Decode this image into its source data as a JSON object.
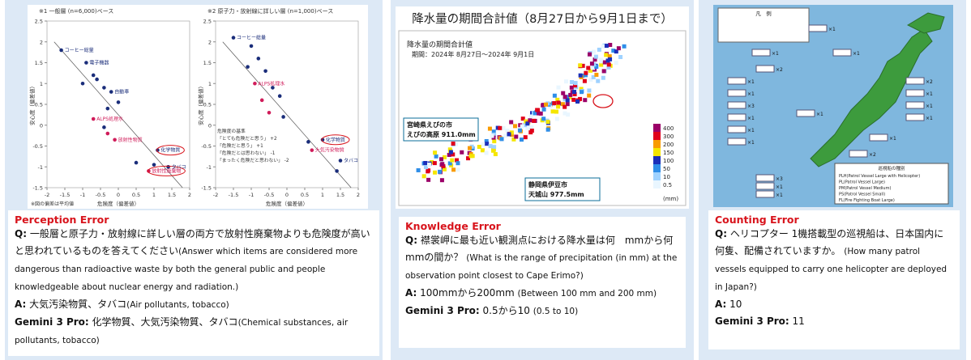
{
  "panels": [
    {
      "image": {
        "charts": [
          {
            "title": "※1 一般層 (n=6,000)ベース",
            "xlabel": "危険度（偏差値）",
            "ylabel": "安心度（偏差値）",
            "xlim": [
              -2,
              2
            ],
            "ylim": [
              -1.5,
              2.5
            ],
            "xticks": [
              -2,
              -1.5,
              -1,
              -0.5,
              0,
              0.5,
              1,
              1.5,
              2
            ],
            "yticks": [
              -1.5,
              -1,
              -0.5,
              0,
              0.5,
              1,
              1.5,
              2,
              2.5
            ],
            "points": [
              {
                "x": -1.6,
                "y": 1.8,
                "color": "#1a2d7a"
              },
              {
                "x": -0.9,
                "y": 1.5,
                "color": "#1a2d7a"
              },
              {
                "x": -0.7,
                "y": 1.2,
                "color": "#1a2d7a"
              },
              {
                "x": -1.0,
                "y": 1.0,
                "color": "#1a2d7a"
              },
              {
                "x": -0.6,
                "y": 1.1,
                "color": "#1a2d7a"
              },
              {
                "x": -0.4,
                "y": 0.9,
                "color": "#1a2d7a"
              },
              {
                "x": -0.2,
                "y": 0.8,
                "color": "#1a2d7a"
              },
              {
                "x": 0.0,
                "y": 0.55,
                "color": "#1a2d7a"
              },
              {
                "x": -0.3,
                "y": 0.4,
                "color": "#1a2d7a"
              },
              {
                "x": -0.7,
                "y": 0.15,
                "color": "#d01c5a"
              },
              {
                "x": -0.4,
                "y": -0.05,
                "color": "#1a2d7a"
              },
              {
                "x": -0.3,
                "y": -0.2,
                "color": "#d01c5a"
              },
              {
                "x": -0.1,
                "y": -0.35,
                "color": "#d01c5a"
              },
              {
                "x": 0.5,
                "y": -0.9,
                "color": "#1a2d7a"
              },
              {
                "x": 1.1,
                "y": -0.6,
                "color": "#1a2d7a"
              },
              {
                "x": 1.0,
                "y": -0.95,
                "color": "#1a2d7a"
              },
              {
                "x": 1.4,
                "y": -1.0,
                "color": "#1a2d7a"
              },
              {
                "x": 0.85,
                "y": -1.1,
                "color": "#d01c5a"
              }
            ],
            "labels": [
              {
                "point": 0,
                "text": "コーヒー総量"
              },
              {
                "point": 1,
                "text": "電子機器"
              },
              {
                "point": 6,
                "text": "自動車"
              },
              {
                "point": 9,
                "text": "ALPS処理水"
              },
              {
                "point": 12,
                "text": "放射性物質"
              },
              {
                "point": 14,
                "text": "化学物質"
              },
              {
                "point": 17,
                "text": "放射性廃棄物"
              },
              {
                "point": 16,
                "text": "タバコ"
              }
            ]
          },
          {
            "title": "※2 原子力・放射線に詳しい層 (n=1,000)ベース",
            "xlabel": "危険度（偏差値）",
            "ylabel": "安心度（偏差値）",
            "xlim": [
              -2,
              2
            ],
            "ylim": [
              -1.5,
              2.5
            ],
            "xticks": [
              -2,
              -1.5,
              -1,
              -0.5,
              0,
              0.5,
              1,
              1.5,
              2
            ],
            "yticks": [
              -1.5,
              -1,
              -0.5,
              0,
              0.5,
              1,
              1.5,
              2,
              2.5
            ],
            "points": [
              {
                "x": -1.5,
                "y": 2.1,
                "color": "#1a2d7a"
              },
              {
                "x": -1.0,
                "y": 1.9,
                "color": "#1a2d7a"
              },
              {
                "x": -0.8,
                "y": 1.6,
                "color": "#1a2d7a"
              },
              {
                "x": -1.1,
                "y": 1.4,
                "color": "#1a2d7a"
              },
              {
                "x": -0.6,
                "y": 1.3,
                "color": "#1a2d7a"
              },
              {
                "x": -0.9,
                "y": 1.0,
                "color": "#d01c5a"
              },
              {
                "x": -0.4,
                "y": 0.9,
                "color": "#1a2d7a"
              },
              {
                "x": -0.2,
                "y": 0.7,
                "color": "#1a2d7a"
              },
              {
                "x": -0.7,
                "y": 0.6,
                "color": "#d01c5a"
              },
              {
                "x": -0.5,
                "y": 0.3,
                "color": "#d01c5a"
              },
              {
                "x": -0.1,
                "y": 0.2,
                "color": "#1a2d7a"
              },
              {
                "x": 0.6,
                "y": -0.4,
                "color": "#1a2d7a"
              },
              {
                "x": 0.7,
                "y": -0.6,
                "color": "#d01c5a"
              },
              {
                "x": 1.0,
                "y": -0.35,
                "color": "#1a2d7a"
              },
              {
                "x": 1.5,
                "y": -0.85,
                "color": "#1a2d7a"
              },
              {
                "x": 1.4,
                "y": -1.1,
                "color": "#1a2d7a"
              }
            ],
            "labels": [
              {
                "point": 0,
                "text": "コーヒー総量"
              },
              {
                "point": 5,
                "text": "ALPS処理水"
              },
              {
                "point": 12,
                "text": "大気汚染物質"
              },
              {
                "point": 13,
                "text": "化学物質"
              },
              {
                "point": 14,
                "text": "タバコ"
              }
            ],
            "note_lines": [
              "危険度の基準",
              "「とても危険だと思う」 +2",
              "「危険だと思う」 +1",
              "「危険だとは思わない」 -1",
              "「まったく危険だと思わない」 -2"
            ]
          }
        ],
        "footnote": "※図の偏差は平均値"
      },
      "error_type": "Perception Error",
      "q_label": "Q:",
      "question": " 一般層と原子力・放射線に詳しい層の両方で放射性廃棄物よりも危険度が高いと思われているものを答えてください",
      "question_en": "(Answer which items are considered more dangerous than radioactive waste by both the general public and people knowledgeable about nuclear energy and radiation.)",
      "a_label": "A:",
      "answer": " 大気汚染物質、タバコ",
      "answer_en": "(Air pollutants, tobacco)",
      "model": "Gemini 3 Pro:",
      "model_answer": " 化学物質、大気汚染物質、タバコ",
      "model_answer_en": "(Chemical substances, air pollutants, tobacco)"
    },
    {
      "image": {
        "title": "降水量の期間合計値（8月27日から9月1日まで）",
        "map_title": "降水量の期間合計値",
        "map_period": "期間：2024年 8月27日〜2024年 9月1日",
        "callouts": [
          [
            "宮崎県えびの市",
            "えびの高原  911.0mm"
          ],
          [
            "静岡県伊豆市",
            "天城山  977.5mm"
          ]
        ],
        "legend": {
          "values": [
            400,
            300,
            200,
            150,
            100,
            50,
            10,
            0.5
          ],
          "colors": [
            "#9b0068",
            "#e0001a",
            "#f99b00",
            "#f5e600",
            "#1b2fb9",
            "#2f8ee8",
            "#9fd2ff",
            "#e9f6ff"
          ],
          "unit": "(mm)"
        }
      },
      "error_type": "Knowledge Error",
      "q_label": "Q:",
      "question": " 襟裳岬に最も近い観測点における降水量は何　mmから何mmの間か？",
      "question_en": "(What is the range of precipitation (in mm) at the observation point closest to Cape Erimo?)",
      "a_label": "A:",
      "answer": " 100mmから200mm",
      "answer_en": "(Between 100 mm and 200 mm)",
      "model": "Gemini 3 Pro:",
      "model_answer": " 0.5から10",
      "model_answer_en": "(0.5 to 10)"
    },
    {
      "image": {
        "legend_title": "凡　例",
        "markers": [
          "×1",
          "×1",
          "×1",
          "×2",
          "×1",
          "×1",
          "×3",
          "×1",
          "×1",
          "×2",
          "×1",
          "×1",
          "×1",
          "×1",
          "×3",
          "×1",
          "×1",
          "×2",
          "×1",
          "×1"
        ],
        "table_title": "巡視船の種別",
        "table_rows": [
          "PLH(Patrol Vessel Large with Helicopter)",
          "PL(Patrol Vessel Large)",
          "PM(Patrol Vessel Medium)",
          "PS(Patrol Vessel Small)",
          "FL(Fire Fighting Boat Large)"
        ]
      },
      "error_type": "Counting Error",
      "q_label": "Q:",
      "question": " ヘリコプター 1機搭載型の巡視船は、日本国内に何隻、配備されていますか。",
      "question_en": "(How many patrol vessels equipped to carry one helicopter are deployed in Japan?)",
      "a_label": "A:",
      "answer": " 10",
      "answer_en": "",
      "model": "Gemini 3 Pro:",
      "model_answer": " 11",
      "model_answer_en": ""
    }
  ]
}
